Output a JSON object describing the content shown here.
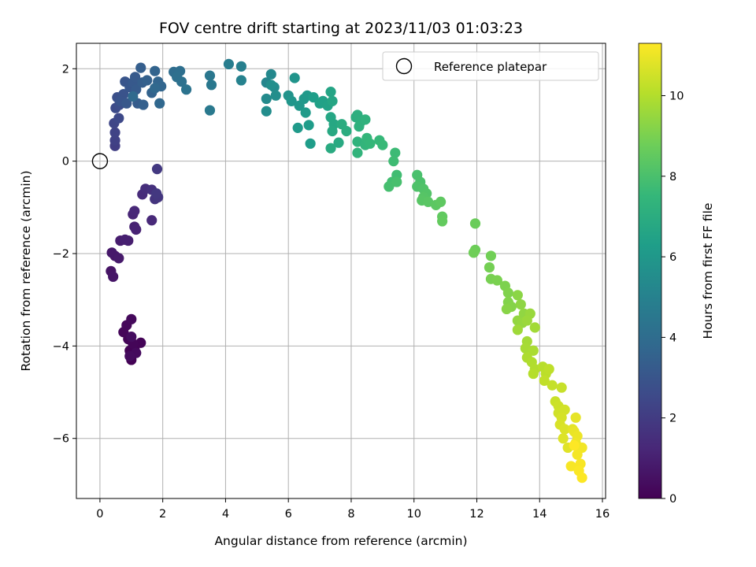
{
  "chart_data": {
    "type": "scatter",
    "title": "FOV centre drift starting at 2023/11/03 01:03:23",
    "xlabel": "Angular distance from reference (arcmin)",
    "ylabel": "Rotation from reference (arcmin)",
    "xlim": [
      -0.75,
      16.1
    ],
    "ylim": [
      -7.3,
      2.55
    ],
    "xticks": [
      0,
      2,
      4,
      6,
      8,
      10,
      12,
      14,
      16
    ],
    "yticks": [
      -6,
      -4,
      -2,
      0,
      2
    ],
    "xtick_labels": [
      "0",
      "2",
      "4",
      "6",
      "8",
      "10",
      "12",
      "14",
      "16"
    ],
    "ytick_labels": [
      "−6",
      "−4",
      "−2",
      "0",
      "2"
    ],
    "grid": true,
    "legend": {
      "position": "top-right",
      "entries": [
        {
          "label": "Reference platepar",
          "marker": "open-circle"
        }
      ]
    },
    "reference_point": {
      "x": 0,
      "y": 0
    },
    "colorbar": {
      "label": "Hours from first FF file",
      "colormap": "viridis",
      "range": [
        0,
        11.3
      ],
      "ticks": [
        0,
        2,
        4,
        6,
        8,
        10
      ],
      "tick_labels": [
        "0",
        "2",
        "4",
        "6",
        "8",
        "10"
      ]
    },
    "colormap_stops": [
      "#440154",
      "#482878",
      "#3e4989",
      "#31688e",
      "#26828e",
      "#1f9e89",
      "#35b779",
      "#6ece58",
      "#b5de2b",
      "#fde725"
    ],
    "points": [
      {
        "x": 1.0,
        "y": -4.3,
        "c": 0.02
      },
      {
        "x": 0.95,
        "y": -4.1,
        "c": 0.05
      },
      {
        "x": 1.1,
        "y": -4.05,
        "c": 0.08
      },
      {
        "x": 1.3,
        "y": -3.93,
        "c": 0.1
      },
      {
        "x": 0.9,
        "y": -3.85,
        "c": 0.12
      },
      {
        "x": 1.05,
        "y": -3.95,
        "c": 0.15
      },
      {
        "x": 0.75,
        "y": -3.7,
        "c": 0.18
      },
      {
        "x": 0.85,
        "y": -3.55,
        "c": 0.2
      },
      {
        "x": 1.0,
        "y": -3.42,
        "c": 0.25
      },
      {
        "x": 1.15,
        "y": -4.15,
        "c": 0.3
      },
      {
        "x": 0.95,
        "y": -4.22,
        "c": 0.35
      },
      {
        "x": 1.0,
        "y": -3.8,
        "c": 0.4
      },
      {
        "x": 0.35,
        "y": -2.38,
        "c": 0.6
      },
      {
        "x": 0.42,
        "y": -2.5,
        "c": 0.65
      },
      {
        "x": 0.48,
        "y": -2.05,
        "c": 0.7
      },
      {
        "x": 0.38,
        "y": -1.98,
        "c": 0.75
      },
      {
        "x": 0.6,
        "y": -2.1,
        "c": 0.8
      },
      {
        "x": 0.65,
        "y": -1.72,
        "c": 0.9
      },
      {
        "x": 0.9,
        "y": -1.72,
        "c": 0.95
      },
      {
        "x": 0.8,
        "y": -1.7,
        "c": 1.0
      },
      {
        "x": 1.1,
        "y": -1.42,
        "c": 1.05
      },
      {
        "x": 1.15,
        "y": -1.48,
        "c": 1.1
      },
      {
        "x": 1.05,
        "y": -1.15,
        "c": 1.2
      },
      {
        "x": 1.1,
        "y": -1.08,
        "c": 1.25
      },
      {
        "x": 1.65,
        "y": -1.28,
        "c": 1.3
      },
      {
        "x": 1.35,
        "y": -0.72,
        "c": 1.4
      },
      {
        "x": 1.45,
        "y": -0.6,
        "c": 1.5
      },
      {
        "x": 1.65,
        "y": -0.62,
        "c": 1.6
      },
      {
        "x": 1.75,
        "y": -0.82,
        "c": 1.7
      },
      {
        "x": 1.85,
        "y": -0.78,
        "c": 1.8
      },
      {
        "x": 1.8,
        "y": -0.7,
        "c": 1.85
      },
      {
        "x": 1.82,
        "y": -0.17,
        "c": 1.9
      },
      {
        "x": 0.48,
        "y": 0.33,
        "c": 2.1
      },
      {
        "x": 0.48,
        "y": 0.45,
        "c": 2.2
      },
      {
        "x": 0.48,
        "y": 0.62,
        "c": 2.3
      },
      {
        "x": 0.45,
        "y": 0.82,
        "c": 2.4
      },
      {
        "x": 0.6,
        "y": 0.93,
        "c": 2.5
      },
      {
        "x": 0.5,
        "y": 1.15,
        "c": 2.6
      },
      {
        "x": 0.62,
        "y": 1.22,
        "c": 2.7
      },
      {
        "x": 0.55,
        "y": 1.38,
        "c": 2.8
      },
      {
        "x": 0.75,
        "y": 1.45,
        "c": 2.9
      },
      {
        "x": 0.65,
        "y": 1.3,
        "c": 2.95
      },
      {
        "x": 0.8,
        "y": 1.72,
        "c": 3.0
      },
      {
        "x": 0.95,
        "y": 1.6,
        "c": 3.05
      },
      {
        "x": 0.85,
        "y": 1.25,
        "c": 3.1
      },
      {
        "x": 1.05,
        "y": 1.7,
        "c": 3.15
      },
      {
        "x": 1.12,
        "y": 1.82,
        "c": 3.2
      },
      {
        "x": 1.15,
        "y": 1.55,
        "c": 3.25
      },
      {
        "x": 1.2,
        "y": 1.25,
        "c": 3.3
      },
      {
        "x": 1.35,
        "y": 1.7,
        "c": 3.35
      },
      {
        "x": 1.3,
        "y": 2.02,
        "c": 3.4
      },
      {
        "x": 1.38,
        "y": 1.22,
        "c": 3.45
      },
      {
        "x": 1.5,
        "y": 1.75,
        "c": 3.5
      },
      {
        "x": 1.65,
        "y": 1.48,
        "c": 3.55
      },
      {
        "x": 1.75,
        "y": 1.95,
        "c": 3.6
      },
      {
        "x": 1.85,
        "y": 1.72,
        "c": 3.65
      },
      {
        "x": 1.95,
        "y": 1.62,
        "c": 3.7
      },
      {
        "x": 1.9,
        "y": 1.25,
        "c": 3.75
      },
      {
        "x": 1.75,
        "y": 1.58,
        "c": 3.8
      },
      {
        "x": 1.05,
        "y": 1.4,
        "c": 3.85
      },
      {
        "x": 2.35,
        "y": 1.93,
        "c": 4.0
      },
      {
        "x": 2.55,
        "y": 1.95,
        "c": 4.1
      },
      {
        "x": 2.45,
        "y": 1.82,
        "c": 4.15
      },
      {
        "x": 2.6,
        "y": 1.72,
        "c": 4.2
      },
      {
        "x": 2.75,
        "y": 1.55,
        "c": 4.3
      },
      {
        "x": 3.5,
        "y": 1.85,
        "c": 4.5
      },
      {
        "x": 3.55,
        "y": 1.65,
        "c": 4.55
      },
      {
        "x": 3.5,
        "y": 1.1,
        "c": 4.6
      },
      {
        "x": 4.1,
        "y": 2.1,
        "c": 4.8
      },
      {
        "x": 4.5,
        "y": 2.05,
        "c": 4.9
      },
      {
        "x": 4.5,
        "y": 1.75,
        "c": 5.0
      },
      {
        "x": 5.3,
        "y": 1.7,
        "c": 5.2
      },
      {
        "x": 5.45,
        "y": 1.88,
        "c": 5.3
      },
      {
        "x": 5.3,
        "y": 1.35,
        "c": 5.4
      },
      {
        "x": 5.55,
        "y": 1.6,
        "c": 5.45
      },
      {
        "x": 5.3,
        "y": 1.08,
        "c": 5.5
      },
      {
        "x": 5.6,
        "y": 1.42,
        "c": 5.55
      },
      {
        "x": 5.45,
        "y": 1.65,
        "c": 5.6
      },
      {
        "x": 6.0,
        "y": 1.42,
        "c": 5.8
      },
      {
        "x": 6.2,
        "y": 1.8,
        "c": 5.85
      },
      {
        "x": 6.1,
        "y": 1.3,
        "c": 5.9
      },
      {
        "x": 6.35,
        "y": 1.2,
        "c": 5.95
      },
      {
        "x": 6.5,
        "y": 1.35,
        "c": 6.0
      },
      {
        "x": 6.6,
        "y": 1.42,
        "c": 6.05
      },
      {
        "x": 6.3,
        "y": 0.72,
        "c": 6.1
      },
      {
        "x": 6.55,
        "y": 1.05,
        "c": 6.15
      },
      {
        "x": 6.65,
        "y": 0.78,
        "c": 6.2
      },
      {
        "x": 6.7,
        "y": 0.38,
        "c": 6.25
      },
      {
        "x": 6.8,
        "y": 1.38,
        "c": 6.3
      },
      {
        "x": 7.0,
        "y": 1.25,
        "c": 6.4
      },
      {
        "x": 7.1,
        "y": 1.3,
        "c": 6.45
      },
      {
        "x": 7.25,
        "y": 1.2,
        "c": 6.5
      },
      {
        "x": 7.35,
        "y": 1.5,
        "c": 6.6
      },
      {
        "x": 7.4,
        "y": 1.3,
        "c": 6.65
      },
      {
        "x": 7.35,
        "y": 0.95,
        "c": 6.7
      },
      {
        "x": 7.45,
        "y": 0.8,
        "c": 6.75
      },
      {
        "x": 7.4,
        "y": 0.65,
        "c": 6.8
      },
      {
        "x": 7.6,
        "y": 0.4,
        "c": 6.85
      },
      {
        "x": 7.35,
        "y": 0.28,
        "c": 6.9
      },
      {
        "x": 7.7,
        "y": 0.8,
        "c": 6.95
      },
      {
        "x": 7.85,
        "y": 0.65,
        "c": 7.0
      },
      {
        "x": 8.15,
        "y": 0.95,
        "c": 7.05
      },
      {
        "x": 8.2,
        "y": 1.0,
        "c": 7.1
      },
      {
        "x": 8.3,
        "y": 0.85,
        "c": 7.15
      },
      {
        "x": 8.25,
        "y": 0.75,
        "c": 7.2
      },
      {
        "x": 8.45,
        "y": 0.9,
        "c": 7.25
      },
      {
        "x": 8.2,
        "y": 0.42,
        "c": 7.3
      },
      {
        "x": 8.2,
        "y": 0.18,
        "c": 7.35
      },
      {
        "x": 8.45,
        "y": 0.35,
        "c": 7.4
      },
      {
        "x": 8.5,
        "y": 0.5,
        "c": 7.45
      },
      {
        "x": 8.6,
        "y": 0.38,
        "c": 7.5
      },
      {
        "x": 8.9,
        "y": 0.45,
        "c": 7.55
      },
      {
        "x": 9.0,
        "y": 0.35,
        "c": 7.6
      },
      {
        "x": 9.4,
        "y": 0.18,
        "c": 7.7
      },
      {
        "x": 9.35,
        "y": 0.0,
        "c": 7.75
      },
      {
        "x": 9.45,
        "y": -0.3,
        "c": 7.8
      },
      {
        "x": 9.3,
        "y": -0.45,
        "c": 7.85
      },
      {
        "x": 9.2,
        "y": -0.55,
        "c": 7.9
      },
      {
        "x": 9.45,
        "y": -0.45,
        "c": 7.95
      },
      {
        "x": 10.1,
        "y": -0.3,
        "c": 8.0
      },
      {
        "x": 10.2,
        "y": -0.45,
        "c": 8.05
      },
      {
        "x": 10.1,
        "y": -0.55,
        "c": 8.1
      },
      {
        "x": 10.3,
        "y": -0.6,
        "c": 8.15
      },
      {
        "x": 10.4,
        "y": -0.7,
        "c": 8.2
      },
      {
        "x": 10.3,
        "y": -0.78,
        "c": 8.25
      },
      {
        "x": 10.25,
        "y": -0.85,
        "c": 8.3
      },
      {
        "x": 10.45,
        "y": -0.88,
        "c": 8.35
      },
      {
        "x": 10.7,
        "y": -0.95,
        "c": 8.4
      },
      {
        "x": 10.85,
        "y": -0.88,
        "c": 8.45
      },
      {
        "x": 10.9,
        "y": -1.2,
        "c": 8.5
      },
      {
        "x": 10.9,
        "y": -1.3,
        "c": 8.55
      },
      {
        "x": 11.95,
        "y": -1.35,
        "c": 8.7
      },
      {
        "x": 11.95,
        "y": -1.92,
        "c": 8.75
      },
      {
        "x": 11.9,
        "y": -1.98,
        "c": 8.8
      },
      {
        "x": 12.45,
        "y": -2.05,
        "c": 8.85
      },
      {
        "x": 12.4,
        "y": -2.3,
        "c": 8.9
      },
      {
        "x": 12.45,
        "y": -2.55,
        "c": 8.95
      },
      {
        "x": 12.65,
        "y": -2.58,
        "c": 9.0
      },
      {
        "x": 12.9,
        "y": -2.7,
        "c": 9.05
      },
      {
        "x": 13.0,
        "y": -2.85,
        "c": 9.1
      },
      {
        "x": 13.0,
        "y": -3.05,
        "c": 9.15
      },
      {
        "x": 13.1,
        "y": -3.15,
        "c": 9.2
      },
      {
        "x": 12.95,
        "y": -3.2,
        "c": 9.25
      },
      {
        "x": 13.3,
        "y": -2.9,
        "c": 9.3
      },
      {
        "x": 13.4,
        "y": -3.1,
        "c": 9.35
      },
      {
        "x": 13.5,
        "y": -3.3,
        "c": 9.4
      },
      {
        "x": 13.3,
        "y": -3.45,
        "c": 9.45
      },
      {
        "x": 13.45,
        "y": -3.5,
        "c": 9.5
      },
      {
        "x": 13.7,
        "y": -3.3,
        "c": 9.55
      },
      {
        "x": 13.6,
        "y": -3.45,
        "c": 9.6
      },
      {
        "x": 13.3,
        "y": -3.65,
        "c": 9.65
      },
      {
        "x": 13.85,
        "y": -3.6,
        "c": 9.7
      },
      {
        "x": 13.6,
        "y": -3.9,
        "c": 9.75
      },
      {
        "x": 13.55,
        "y": -4.05,
        "c": 9.8
      },
      {
        "x": 13.8,
        "y": -4.1,
        "c": 9.85
      },
      {
        "x": 13.6,
        "y": -4.25,
        "c": 9.9
      },
      {
        "x": 13.75,
        "y": -4.35,
        "c": 9.95
      },
      {
        "x": 13.85,
        "y": -4.5,
        "c": 10.0
      },
      {
        "x": 13.8,
        "y": -4.6,
        "c": 10.05
      },
      {
        "x": 14.1,
        "y": -4.45,
        "c": 10.1
      },
      {
        "x": 14.2,
        "y": -4.6,
        "c": 10.15
      },
      {
        "x": 14.3,
        "y": -4.5,
        "c": 10.2
      },
      {
        "x": 14.15,
        "y": -4.75,
        "c": 10.25
      },
      {
        "x": 14.4,
        "y": -4.85,
        "c": 10.3
      },
      {
        "x": 14.7,
        "y": -4.9,
        "c": 10.35
      },
      {
        "x": 14.5,
        "y": -5.2,
        "c": 10.4
      },
      {
        "x": 14.6,
        "y": -5.3,
        "c": 10.45
      },
      {
        "x": 14.6,
        "y": -5.45,
        "c": 10.5
      },
      {
        "x": 14.8,
        "y": -5.38,
        "c": 10.55
      },
      {
        "x": 14.7,
        "y": -5.55,
        "c": 10.6
      },
      {
        "x": 14.65,
        "y": -5.7,
        "c": 10.65
      },
      {
        "x": 14.8,
        "y": -5.8,
        "c": 10.7
      },
      {
        "x": 14.75,
        "y": -6.0,
        "c": 10.75
      },
      {
        "x": 14.9,
        "y": -6.2,
        "c": 10.8
      },
      {
        "x": 15.05,
        "y": -5.8,
        "c": 10.85
      },
      {
        "x": 15.15,
        "y": -5.55,
        "c": 10.9
      },
      {
        "x": 15.1,
        "y": -5.85,
        "c": 10.95
      },
      {
        "x": 15.2,
        "y": -5.95,
        "c": 11.0
      },
      {
        "x": 15.15,
        "y": -6.1,
        "c": 11.05
      },
      {
        "x": 15.35,
        "y": -6.2,
        "c": 11.1
      },
      {
        "x": 15.2,
        "y": -6.35,
        "c": 11.15
      },
      {
        "x": 15.0,
        "y": -6.6,
        "c": 11.2
      },
      {
        "x": 15.3,
        "y": -6.55,
        "c": 11.22
      },
      {
        "x": 15.25,
        "y": -6.7,
        "c": 11.25
      },
      {
        "x": 15.35,
        "y": -6.85,
        "c": 11.28
      },
      {
        "x": 15.1,
        "y": -6.15,
        "c": 11.3
      }
    ]
  }
}
